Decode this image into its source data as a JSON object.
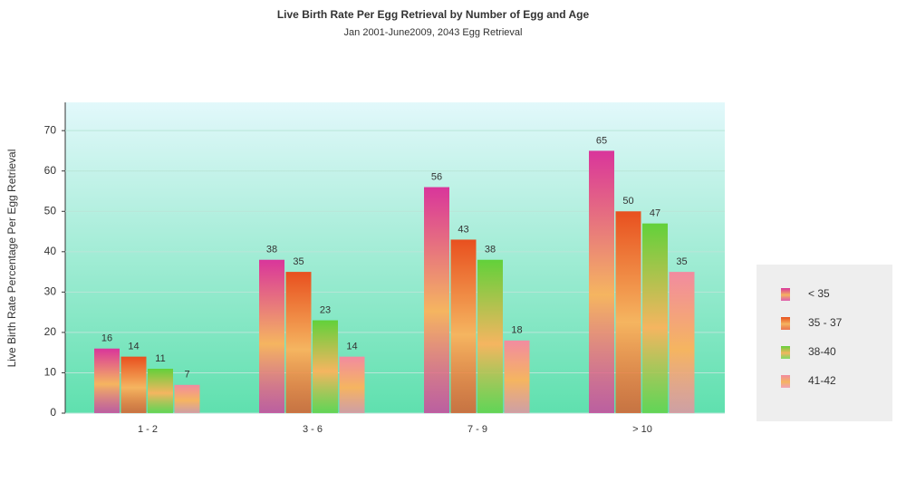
{
  "chart_data": {
    "type": "bar",
    "title": "Live Birth Rate Per Egg Retrieval by Number of Egg and Age",
    "subtitle": "Jan 2001-June2009, 2043 Egg Retrieval",
    "y_label": "Live Birth Rate Percentage Per Egg Retrieval",
    "categories": [
      "1 - 2",
      "3 - 6",
      "7 - 9",
      "> 10"
    ],
    "series": [
      {
        "name": "< 35",
        "color": "#d9359b",
        "values": [
          16,
          38,
          56,
          65
        ]
      },
      {
        "name": "35 - 37",
        "color": "#e8501f",
        "values": [
          14,
          35,
          43,
          50
        ]
      },
      {
        "name": "38-40",
        "color": "#62d13a",
        "values": [
          11,
          23,
          38,
          47
        ]
      },
      {
        "name": "41-42",
        "color": "#f28ba0",
        "values": [
          7,
          14,
          18,
          35
        ]
      }
    ],
    "ylim": [
      0,
      77
    ],
    "yticks": [
      0,
      10,
      20,
      30,
      40,
      50,
      60,
      70
    ],
    "grid": true,
    "legend": "right"
  }
}
